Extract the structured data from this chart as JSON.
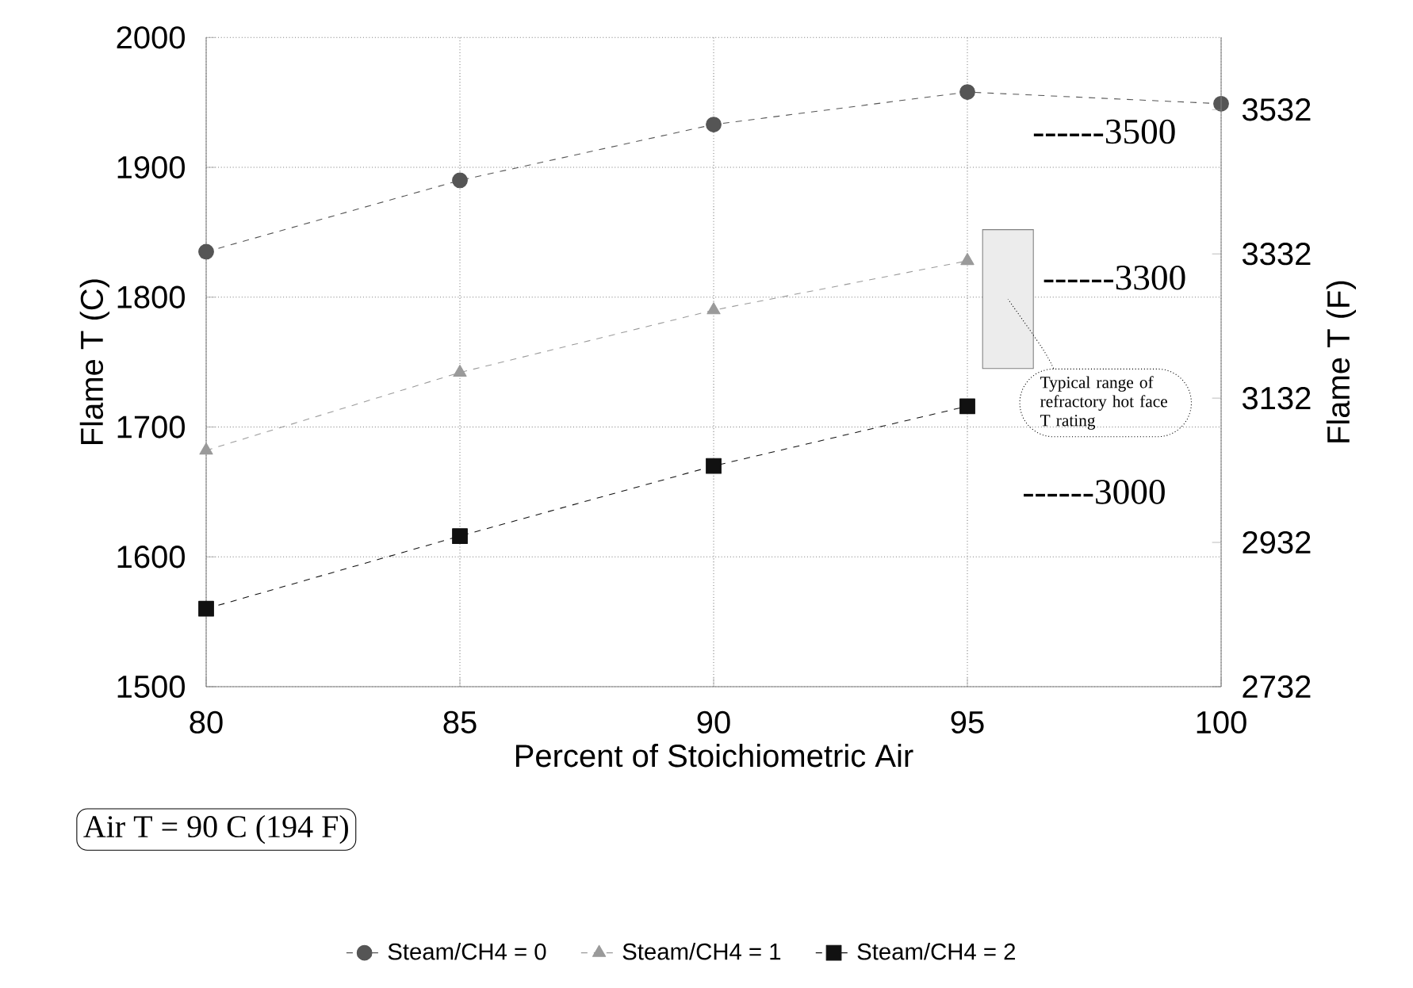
{
  "chart_data": {
    "type": "line",
    "xlabel": "Percent of Stoichiometric Air",
    "ylabel": "Flame T (C)",
    "y2label": "Flame T (F)",
    "x": [
      80,
      85,
      90,
      95,
      100
    ],
    "series": [
      {
        "name": "Steam/CH4 = 0",
        "color": "#555555",
        "marker": "circle",
        "values": [
          1835,
          1890,
          1933,
          1958,
          1949
        ]
      },
      {
        "name": "Steam/CH4 = 1",
        "color": "#9a9a9a",
        "marker": "triangle",
        "values": [
          1682,
          1742,
          1790,
          1828,
          null
        ]
      },
      {
        "name": "Steam/CH4 = 2",
        "color": "#111111",
        "marker": "square",
        "values": [
          1560,
          1616,
          1670,
          1716,
          null
        ]
      }
    ],
    "xlim": [
      80,
      100
    ],
    "xticks": [
      80,
      85,
      90,
      95,
      100
    ],
    "ylim": [
      1500,
      2000
    ],
    "yticks": [
      1500,
      1600,
      1700,
      1800,
      1900,
      2000
    ],
    "y2lim": [
      2732,
      3632
    ],
    "y2ticks": [
      2732,
      2932,
      3132,
      3332,
      3532
    ],
    "bands": [
      {
        "axis": "y",
        "from": 1745,
        "to": 1852,
        "label": "Typical range of refractory hot face T rating"
      }
    ],
    "annotations": [
      "------3500",
      "------3300",
      "------3000",
      "Air T = 90 C (194 F)"
    ],
    "grid": true,
    "legend": "bottom",
    "line_style": "dashed"
  }
}
